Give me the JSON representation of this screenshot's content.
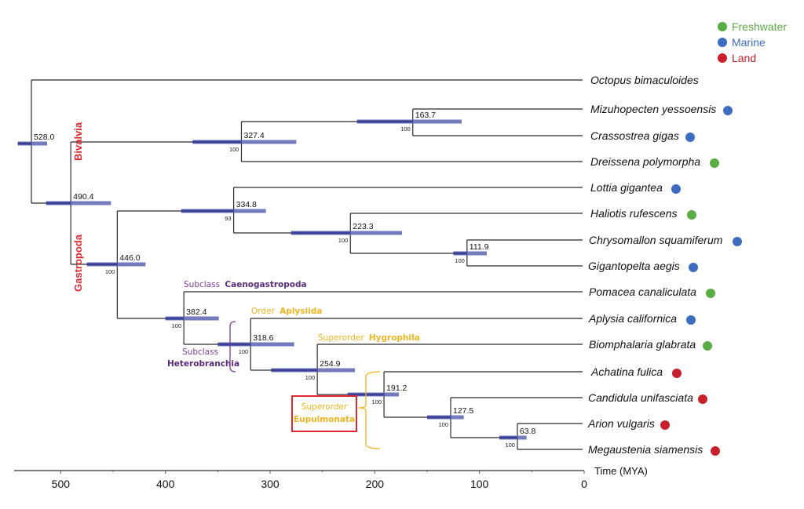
{
  "chart_data": {
    "type": "tree",
    "title": "",
    "xlabel": "Time (MYA)",
    "x_axis": {
      "range": [
        0,
        550
      ],
      "reversed": true,
      "ticks": [
        500,
        400,
        300,
        200,
        100,
        0
      ],
      "minor_ticks": [
        450,
        350,
        250,
        150,
        50
      ]
    },
    "legend": {
      "placement": "top-right",
      "items": [
        {
          "label": "Freshwater",
          "color": "#5aac44"
        },
        {
          "label": "Marine",
          "color": "#3d6cc0"
        },
        {
          "label": "Land",
          "color": "#c8202a"
        }
      ]
    },
    "leaves": [
      {
        "name": "Octopus bimaculoides",
        "habitat": null
      },
      {
        "name": "Mizuhopecten yessoensis",
        "habitat": "Marine"
      },
      {
        "name": "Crassostrea gigas",
        "habitat": "Marine"
      },
      {
        "name": "Dreissena polymorpha",
        "habitat": "Freshwater"
      },
      {
        "name": "Lottia gigantea",
        "habitat": "Marine"
      },
      {
        "name": "Haliotis rufescens",
        "habitat": "Freshwater"
      },
      {
        "name": "Chrysomallon squamiferum",
        "habitat": "Marine"
      },
      {
        "name": "Gigantopelta aegis",
        "habitat": "Marine"
      },
      {
        "name": "Pomacea canaliculata",
        "habitat": "Freshwater"
      },
      {
        "name": "Aplysia californica",
        "habitat": "Marine"
      },
      {
        "name": "Biomphalaria glabrata",
        "habitat": "Freshwater"
      },
      {
        "name": "Achatina fulica",
        "habitat": "Land"
      },
      {
        "name": "Candidula unifasciata",
        "habitat": "Land"
      },
      {
        "name": "Arion vulgaris",
        "habitat": "Land"
      },
      {
        "name": "Megaustenia siamensis",
        "habitat": "Land"
      }
    ],
    "nodes": [
      {
        "id": "n528",
        "age": 528.0,
        "label": "528.0",
        "support": null,
        "ci": [
          541,
          513
        ],
        "children": [
          "leaf:0",
          "n490"
        ]
      },
      {
        "id": "n490",
        "age": 490.4,
        "label": "490.4",
        "support": null,
        "ci": [
          514,
          452
        ],
        "children": [
          "n327",
          "n446"
        ]
      },
      {
        "id": "n327",
        "age": 327.4,
        "label": "327.4",
        "support": "100",
        "ci": [
          374,
          275
        ],
        "children": [
          "n163",
          "leaf:3"
        ]
      },
      {
        "id": "n163",
        "age": 163.7,
        "label": "163.7",
        "support": "100",
        "ci": [
          217,
          117
        ],
        "children": [
          "leaf:1",
          "leaf:2"
        ]
      },
      {
        "id": "n446",
        "age": 446.0,
        "label": "446.0",
        "support": "100",
        "ci": [
          475,
          419
        ],
        "children": [
          "n334",
          "n382"
        ]
      },
      {
        "id": "n334",
        "age": 334.8,
        "label": "334.8",
        "support": "93",
        "ci": [
          385,
          304
        ],
        "children": [
          "leaf:4",
          "n223"
        ]
      },
      {
        "id": "n223",
        "age": 223.3,
        "label": "223.3",
        "support": "100",
        "ci": [
          280,
          174
        ],
        "children": [
          "leaf:5",
          "n111"
        ]
      },
      {
        "id": "n111",
        "age": 111.9,
        "label": "111.9",
        "support": "100",
        "ci": [
          125,
          93
        ],
        "children": [
          "leaf:6",
          "leaf:7"
        ]
      },
      {
        "id": "n382",
        "age": 382.4,
        "label": "382.4",
        "support": "100",
        "ci": [
          400,
          349
        ],
        "children": [
          "leaf:8",
          "n318"
        ]
      },
      {
        "id": "n318",
        "age": 318.6,
        "label": "318.6",
        "support": "100",
        "ci": [
          350,
          277
        ],
        "children": [
          "leaf:9",
          "n254"
        ]
      },
      {
        "id": "n254",
        "age": 254.9,
        "label": "254.9",
        "support": "100",
        "ci": [
          299,
          219
        ],
        "children": [
          "leaf:10",
          "n191"
        ]
      },
      {
        "id": "n191",
        "age": 191.2,
        "label": "191.2",
        "support": "100",
        "ci": [
          226,
          177
        ],
        "children": [
          "leaf:11",
          "n127"
        ]
      },
      {
        "id": "n127",
        "age": 127.5,
        "label": "127.5",
        "support": "100",
        "ci": [
          150,
          115
        ],
        "children": [
          "leaf:12",
          "n63"
        ]
      },
      {
        "id": "n63",
        "age": 63.8,
        "label": "63.8",
        "support": "100",
        "ci": [
          81,
          55
        ],
        "children": [
          "leaf:13",
          "leaf:14"
        ]
      }
    ],
    "clade_labels": [
      {
        "text": "Bivalvia",
        "color": "#e0282e",
        "orientation": "vertical"
      },
      {
        "text": "Gastropoda",
        "color": "#e0282e",
        "orientation": "vertical"
      }
    ],
    "annotations": [
      {
        "prefix": "Subclass",
        "name": "Caenogastropoda",
        "color": "#7b3f98"
      },
      {
        "prefix": "Order",
        "name": "Aplysiida",
        "color": "#f2b420"
      },
      {
        "prefix": "Superorder",
        "name": "Hygrophila",
        "color": "#f2b420"
      },
      {
        "prefix": "Subclass",
        "name": "Heterobranchia",
        "color": "#7b3f98"
      },
      {
        "prefix": "Superorder",
        "name": "Eupulmonata",
        "color": "#f2b420",
        "boxed": true,
        "box_color": "#e0282e"
      }
    ]
  }
}
